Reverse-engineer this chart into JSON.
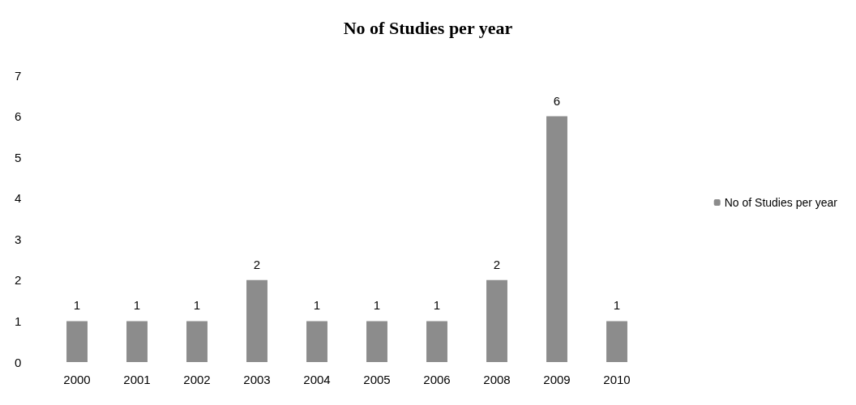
{
  "chart_data": {
    "type": "bar",
    "title": "No of Studies per year",
    "categories": [
      "2000",
      "2001",
      "2002",
      "2003",
      "2004",
      "2005",
      "2006",
      "2008",
      "2009",
      "2010"
    ],
    "series": [
      {
        "name": "No of Studies per year",
        "color": "#8c8c8c",
        "values": [
          1,
          1,
          1,
          2,
          1,
          1,
          1,
          2,
          6,
          1
        ]
      }
    ],
    "ylim": [
      0,
      7
    ],
    "yticks": [
      0,
      1,
      2,
      3,
      4,
      5,
      6,
      7
    ],
    "grid": false,
    "legend": "right",
    "data_labels": true
  }
}
